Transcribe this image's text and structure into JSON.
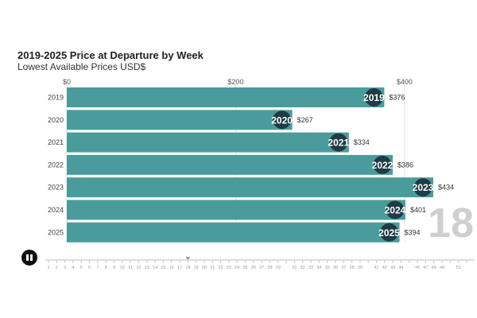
{
  "chart_data": {
    "type": "bar",
    "orientation": "horizontal",
    "title": "2019-2025 Price at Departure by Week",
    "subtitle": "Lowest Available Prices USD$",
    "categories": [
      "2019",
      "2020",
      "2021",
      "2022",
      "2023",
      "2024",
      "2025"
    ],
    "values": [
      376,
      267,
      334,
      386,
      434,
      401,
      394
    ],
    "value_labels": [
      "$376",
      "$267",
      "$334",
      "$386",
      "$434",
      "$401",
      "$394"
    ],
    "xlim": [
      0,
      434
    ],
    "x_ticks": [
      0,
      200,
      400
    ],
    "x_tick_labels": [
      "$0",
      "$200",
      "$400"
    ],
    "bar_color": "#4a9c9c",
    "badge_color": "#1f3b45",
    "grid": true,
    "current_week_label": "18"
  },
  "timeline": {
    "week_labels": [
      "1",
      "2",
      "3",
      "4",
      "5",
      "6",
      "7",
      "8",
      "9",
      "10",
      "11",
      "12",
      "13",
      "14",
      "15",
      "16",
      "17",
      "18",
      "19",
      "20",
      "21",
      "22",
      "23",
      "24",
      "25",
      "26",
      "27",
      "28",
      "29",
      "31",
      "32",
      "33",
      "34",
      "35",
      "36",
      "37",
      "38",
      "39",
      "41",
      "42",
      "43",
      "44",
      "46",
      "47",
      "48",
      "49",
      "51"
    ],
    "current_week": 18
  },
  "controls": {
    "pause_icon": "pause-icon"
  }
}
